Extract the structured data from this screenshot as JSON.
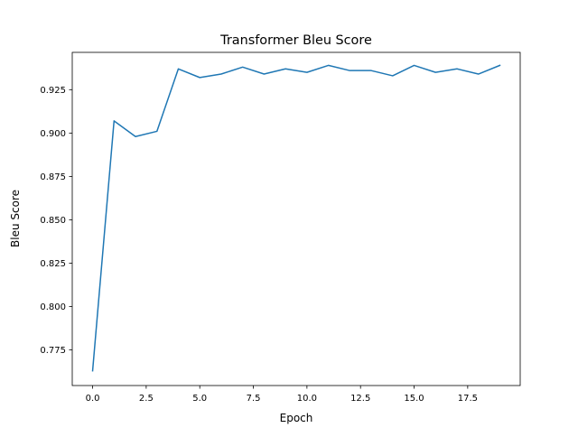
{
  "chart_data": {
    "type": "line",
    "title": "Transformer Bleu Score",
    "xlabel": "Epoch",
    "ylabel": "Bleu Score",
    "xlim": [
      -0.95,
      19.95
    ],
    "ylim": [
      0.7545,
      0.9465
    ],
    "xticks": [
      0.0,
      2.5,
      5.0,
      7.5,
      10.0,
      12.5,
      15.0,
      17.5
    ],
    "xtick_labels": [
      "0.0",
      "2.5",
      "5.0",
      "7.5",
      "10.0",
      "12.5",
      "15.0",
      "17.5"
    ],
    "yticks": [
      0.775,
      0.8,
      0.825,
      0.85,
      0.875,
      0.9,
      0.925
    ],
    "ytick_labels": [
      "0.775",
      "0.800",
      "0.825",
      "0.850",
      "0.875",
      "0.900",
      "0.925"
    ],
    "grid": false,
    "series": [
      {
        "color": "#1f77b4",
        "x": [
          0,
          1,
          2,
          3,
          4,
          5,
          6,
          7,
          8,
          9,
          10,
          11,
          12,
          13,
          14,
          15,
          16,
          17,
          18,
          19
        ],
        "values": [
          0.763,
          0.907,
          0.898,
          0.901,
          0.937,
          0.932,
          0.934,
          0.938,
          0.934,
          0.937,
          0.935,
          0.939,
          0.936,
          0.936,
          0.933,
          0.939,
          0.935,
          0.937,
          0.934,
          0.939
        ]
      }
    ]
  }
}
